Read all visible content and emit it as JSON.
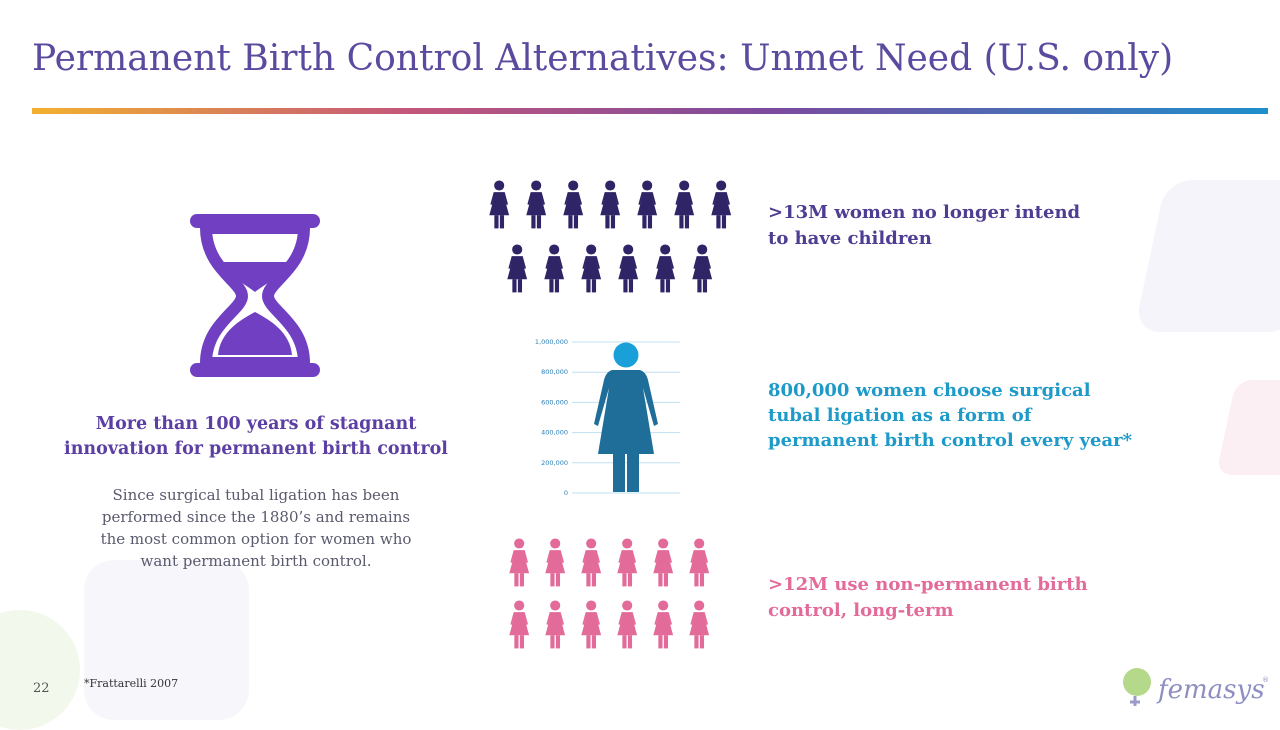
{
  "title": "Permanent Birth Control Alternatives:  Unmet Need (U.S. only)",
  "left": {
    "headline_line1": "More than 100 years of stagnant",
    "headline_line2": "innovation for permanent birth control",
    "body_line1": "Since surgical tubal ligation has been",
    "body_line2": "performed since the 1880’s and remains",
    "body_line3": "the most common option for women who",
    "body_line4": "want permanent birth control."
  },
  "stats": {
    "s1_line1": ">13M women no longer intend",
    "s1_line2": "to have children",
    "s2_line1": "800,000 women choose surgical",
    "s2_line2": "tubal ligation as a form of",
    "s2_line3": "permanent birth control every year*",
    "s3_line1": ">12M use non-permanent birth",
    "s3_line2": "control, long-term"
  },
  "scale": {
    "ticks": [
      "1,000,000",
      "800,000",
      "600,000",
      "400,000",
      "200,000",
      "0"
    ],
    "value": 800000
  },
  "footnote": "*Frattarelli 2007",
  "page_number": "22",
  "logo_text": "femasys",
  "colors": {
    "title": "#5B4A9E",
    "navy_figures": "#2E2466",
    "pink_figures": "#E36B9A",
    "teal_figure": "#1F6E9A",
    "teal_head": "#1AA0D8",
    "hourglass": "#7140C2"
  },
  "icons": [
    "hourglass-icon",
    "woman-figure-icon",
    "logo-mark-icon"
  ]
}
